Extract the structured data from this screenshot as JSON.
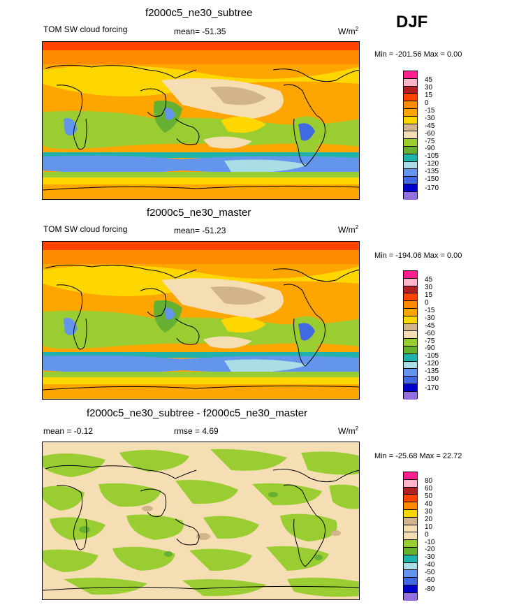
{
  "season": "DJF",
  "panels": [
    {
      "title": "f2000c5_ne30_subtree",
      "left": "TOM SW cloud forcing",
      "stat": "mean= -51.35",
      "units_base": "W/m",
      "units_exp": "2",
      "range": "Min = -201.56 Max =   0.00",
      "scale": {
        "labels": [
          "45",
          "30",
          "15",
          "0",
          "-15",
          "-30",
          "-45",
          "-60",
          "-75",
          "-90",
          "-105",
          "-120",
          "-135",
          "-150",
          "-170"
        ],
        "colors": [
          "#ff1f8f",
          "#ffb6c8",
          "#b22222",
          "#ff4500",
          "#ff8c00",
          "#ffa500",
          "#ffd700",
          "#d2b48c",
          "#f5deb3",
          "#9acd32",
          "#66b032",
          "#20b2aa",
          "#aadde6",
          "#6495ed",
          "#4169e1",
          "#0000cd",
          "#9370db"
        ]
      }
    },
    {
      "title": "f2000c5_ne30_master",
      "left": "TOM SW cloud forcing",
      "stat": "mean= -51.23",
      "units_base": "W/m",
      "units_exp": "2",
      "range": "Min = -194.06 Max =   0.00",
      "scale": {
        "labels": [
          "45",
          "30",
          "15",
          "0",
          "-15",
          "-30",
          "-45",
          "-60",
          "-75",
          "-90",
          "-105",
          "-120",
          "-135",
          "-150",
          "-170"
        ],
        "colors": [
          "#ff1f8f",
          "#ffb6c8",
          "#b22222",
          "#ff4500",
          "#ff8c00",
          "#ffa500",
          "#ffd700",
          "#d2b48c",
          "#f5deb3",
          "#9acd32",
          "#66b032",
          "#20b2aa",
          "#aadde6",
          "#6495ed",
          "#4169e1",
          "#0000cd",
          "#9370db"
        ]
      }
    },
    {
      "title": "f2000c5_ne30_subtree - f2000c5_ne30_master",
      "left": "mean =  -0.12",
      "stat": "rmse =   4.69",
      "units_base": "W/m",
      "units_exp": "2",
      "range": "Min = -25.68 Max =  22.72",
      "scale": {
        "labels": [
          "80",
          "60",
          "50",
          "40",
          "30",
          "20",
          "10",
          "0",
          "-10",
          "-20",
          "-30",
          "-40",
          "-50",
          "-60",
          "-80"
        ],
        "colors": [
          "#ff1f8f",
          "#ffb6c8",
          "#b22222",
          "#ff4500",
          "#ff8c00",
          "#ffd700",
          "#d2b48c",
          "#f5deb3",
          "#f5deb3",
          "#9acd32",
          "#66b032",
          "#20b2aa",
          "#aadde6",
          "#6495ed",
          "#4169e1",
          "#0000cd",
          "#9370db"
        ]
      }
    }
  ]
}
